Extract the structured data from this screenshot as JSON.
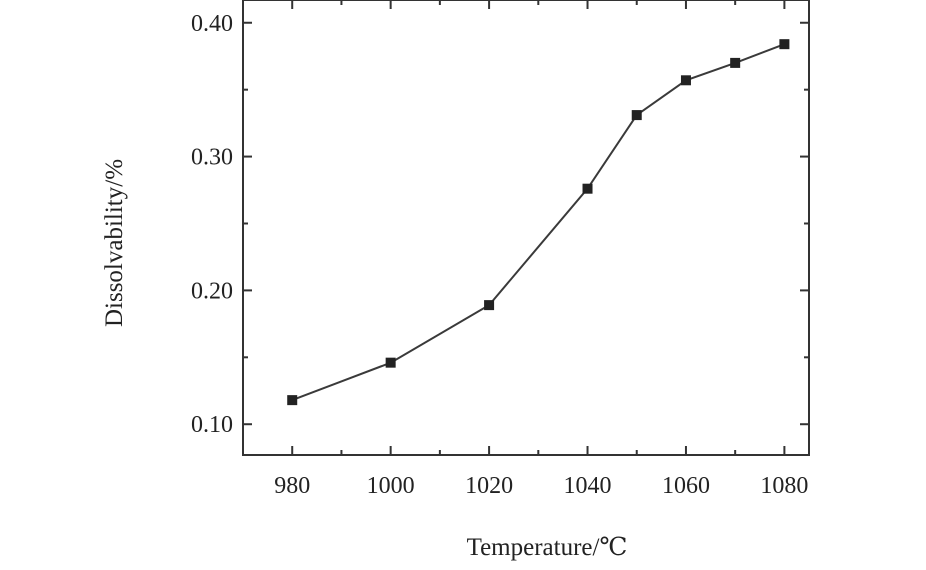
{
  "chart_data": {
    "type": "line",
    "xlabel": "Temperature/℃",
    "ylabel": "Dissolvability/%",
    "xlim": [
      970,
      1085
    ],
    "ylim": [
      0.077,
      0.417
    ],
    "xticks": [
      980,
      1000,
      1020,
      1040,
      1060,
      1080
    ],
    "yticks": [
      0.1,
      0.2,
      0.3,
      0.4
    ],
    "xtick_labels": [
      "980",
      "1000",
      "1020",
      "1040",
      "1060",
      "1080"
    ],
    "ytick_labels": [
      "0.10",
      "0.20",
      "0.30",
      "0.40"
    ],
    "grid": false,
    "series": [
      {
        "x": [
          980,
          1000,
          1020,
          1040,
          1050,
          1060,
          1070,
          1080
        ],
        "y": [
          0.118,
          0.146,
          0.189,
          0.276,
          0.331,
          0.357,
          0.37,
          0.384
        ]
      }
    ]
  }
}
